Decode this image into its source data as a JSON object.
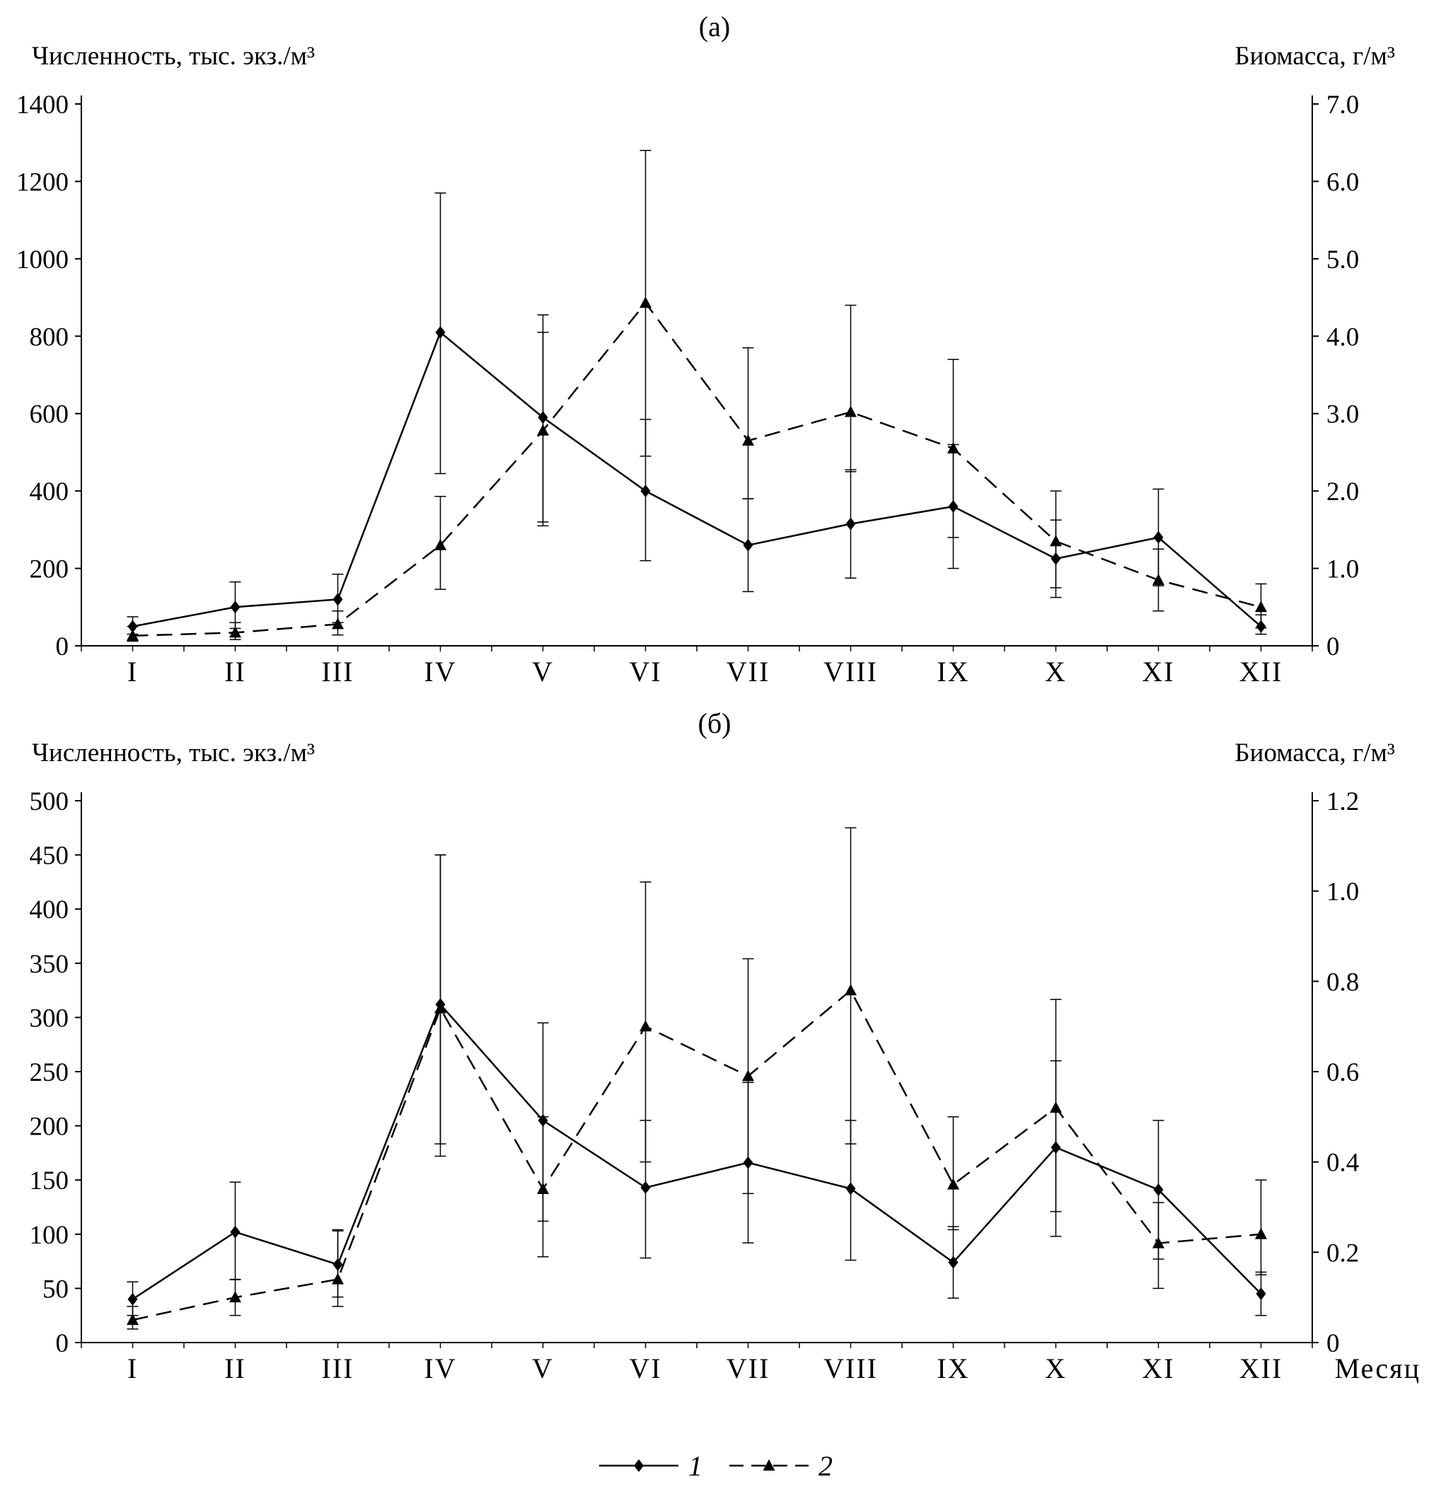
{
  "figure": {
    "background_color": "#ffffff",
    "line_color": "#000000"
  },
  "legend": {
    "position": "bottom",
    "items": [
      {
        "label": "1",
        "marker": "diamond",
        "line": "solid"
      },
      {
        "label": "2",
        "marker": "triangle",
        "line": "dashed"
      }
    ]
  },
  "chart_data": [
    {
      "type": "line",
      "panel_label": "(а)",
      "left_axis_label": "Численность, тыс. экз./м³",
      "right_axis_label": "Биомасса, г/м³",
      "x_axis_label": "",
      "categories": [
        "I",
        "II",
        "III",
        "IV",
        "V",
        "VI",
        "VII",
        "VIII",
        "IX",
        "X",
        "XI",
        "XII"
      ],
      "left_ylim": [
        0,
        1400
      ],
      "left_tick_values": [
        0,
        200,
        400,
        600,
        800,
        1000,
        1200,
        1400
      ],
      "left_tick_labels": [
        "0",
        "200",
        "400",
        "600",
        "800",
        "1000",
        "1200",
        "1400"
      ],
      "right_ylim": [
        0,
        7.0
      ],
      "right_tick_values": [
        0,
        1,
        2,
        3,
        4,
        5,
        6,
        7
      ],
      "right_tick_labels": [
        "0",
        "1.0",
        "2.0",
        "3.0",
        "4.0",
        "5.0",
        "6.0",
        "7.0"
      ],
      "grid": false,
      "series": [
        {
          "name": "1",
          "axis": "left",
          "marker": "diamond",
          "line": "solid",
          "values": [
            50,
            100,
            120,
            810,
            590,
            400,
            260,
            315,
            360,
            225,
            280,
            50
          ],
          "err_low": [
            30,
            45,
            60,
            445,
            320,
            220,
            140,
            175,
            200,
            125,
            155,
            30
          ],
          "err_high": [
            75,
            165,
            185,
            1170,
            855,
            585,
            380,
            455,
            520,
            325,
            405,
            80
          ]
        },
        {
          "name": "2",
          "axis": "right",
          "marker": "triangle",
          "line": "dashed",
          "values": [
            0.13,
            0.17,
            0.28,
            1.3,
            2.78,
            4.43,
            2.65,
            3.02,
            2.55,
            1.35,
            0.85,
            0.5
          ],
          "err_low": [
            0.06,
            0.08,
            0.14,
            0.73,
            1.55,
            2.45,
            1.9,
            2.25,
            1.4,
            0.75,
            0.45,
            0.23
          ],
          "err_high": [
            0.25,
            0.3,
            0.45,
            1.93,
            4.05,
            6.4,
            3.85,
            4.4,
            3.7,
            2.0,
            1.25,
            0.8
          ]
        }
      ]
    },
    {
      "type": "line",
      "panel_label": "(б)",
      "left_axis_label": "Численность, тыс. экз./м³",
      "right_axis_label": "Биомасса, г/м³",
      "x_axis_label": "Месяц",
      "categories": [
        "I",
        "II",
        "III",
        "IV",
        "V",
        "VI",
        "VII",
        "VIII",
        "IX",
        "X",
        "XI",
        "XII"
      ],
      "left_ylim": [
        0,
        500
      ],
      "left_tick_values": [
        0,
        50,
        100,
        150,
        200,
        250,
        300,
        350,
        400,
        450,
        500
      ],
      "left_tick_labels": [
        "0",
        "50",
        "100",
        "150",
        "200",
        "250",
        "300",
        "350",
        "400",
        "450",
        "500"
      ],
      "right_ylim": [
        0,
        1.2
      ],
      "right_tick_values": [
        0,
        0.2,
        0.4,
        0.6,
        0.8,
        1.0,
        1.2
      ],
      "right_tick_labels": [
        "0",
        "0.2",
        "0.4",
        "0.6",
        "0.8",
        "1.0",
        "1.2"
      ],
      "grid": false,
      "series": [
        {
          "name": "1",
          "axis": "left",
          "marker": "diamond",
          "line": "solid",
          "values": [
            40,
            102,
            72,
            312,
            205,
            143,
            166,
            142,
            74,
            180,
            141,
            45
          ],
          "err_low": [
            25,
            58,
            42,
            172,
            112,
            78,
            92,
            76,
            41,
            98,
            77,
            25
          ],
          "err_high": [
            56,
            148,
            103,
            450,
            295,
            205,
            240,
            205,
            107,
            260,
            205,
            65
          ]
        },
        {
          "name": "2",
          "axis": "right",
          "marker": "triangle",
          "line": "dashed",
          "values": [
            0.05,
            0.1,
            0.14,
            0.74,
            0.34,
            0.7,
            0.59,
            0.78,
            0.35,
            0.52,
            0.22,
            0.24
          ],
          "err_low": [
            0.03,
            0.06,
            0.08,
            0.44,
            0.19,
            0.4,
            0.33,
            0.44,
            0.25,
            0.29,
            0.12,
            0.15
          ],
          "err_high": [
            0.08,
            0.14,
            0.25,
            1.08,
            0.5,
            1.02,
            0.85,
            1.14,
            0.5,
            0.76,
            0.31,
            0.36
          ]
        }
      ]
    }
  ]
}
